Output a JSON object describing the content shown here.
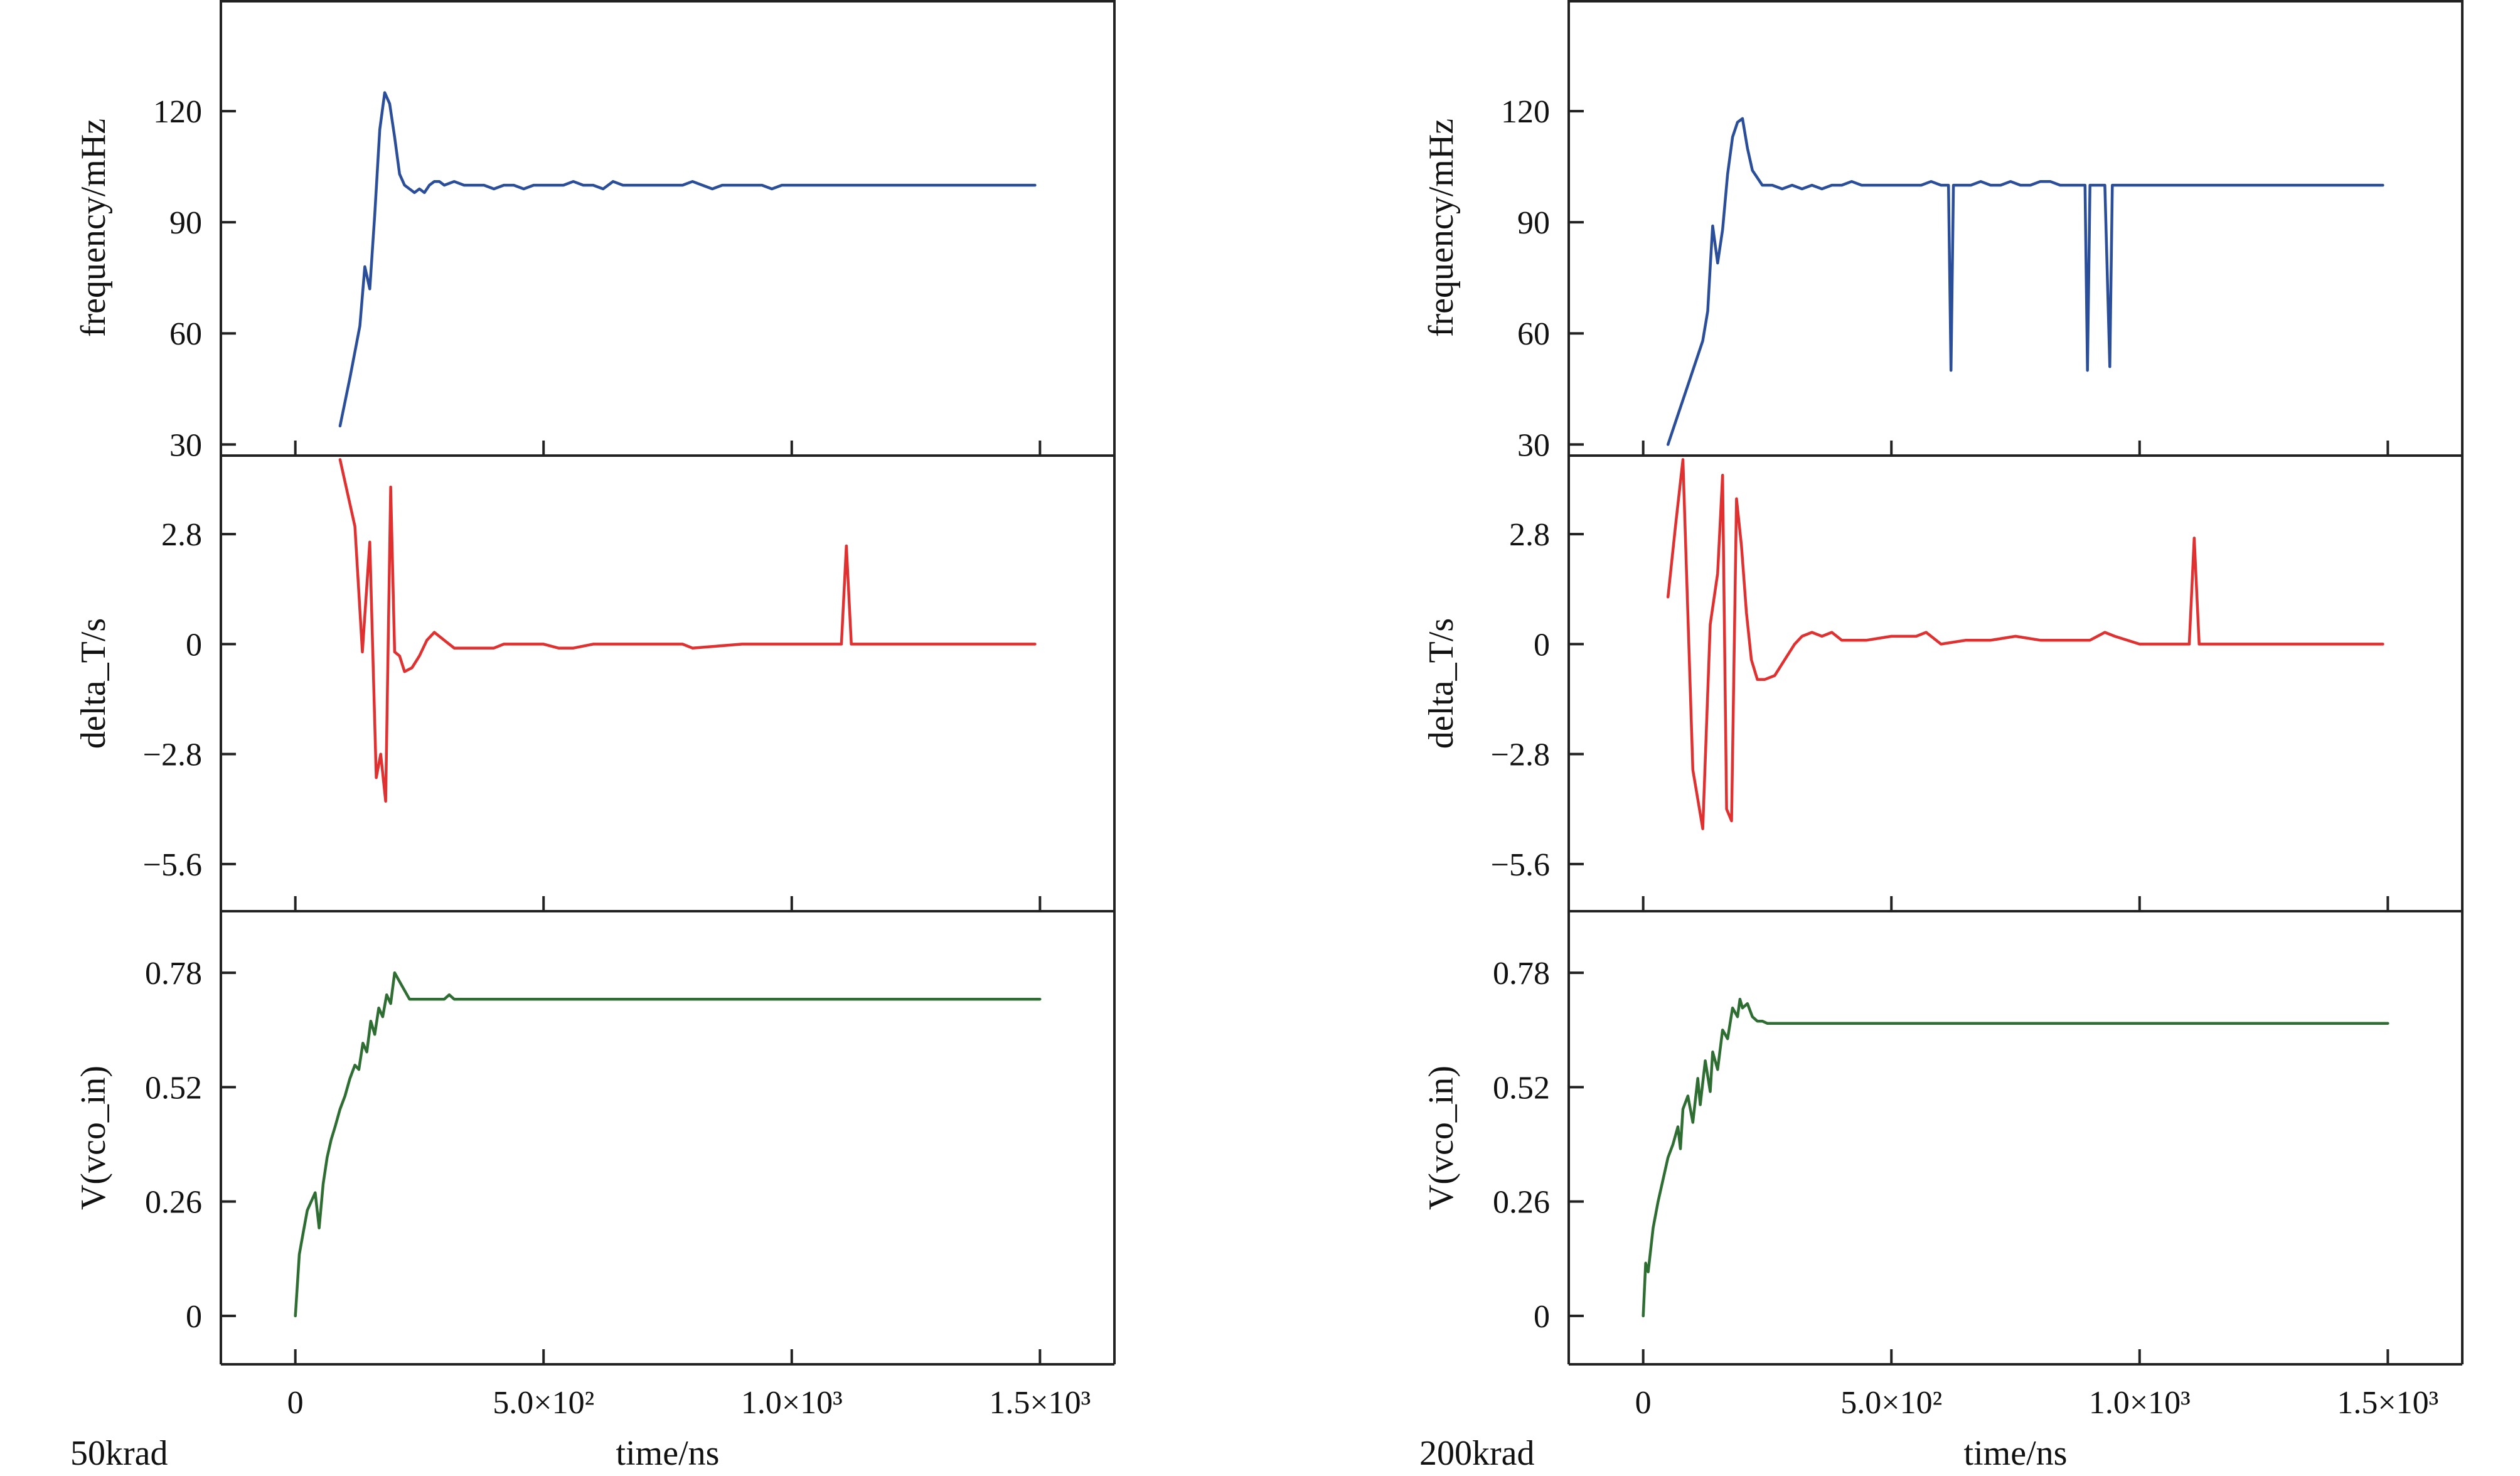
{
  "chart_data": [
    {
      "type": "line",
      "subplot_label": "50krad",
      "xlabel": "time/ns",
      "xlim": [
        -150,
        1650
      ],
      "xticks": [
        0,
        500,
        1000,
        1500
      ],
      "xtick_labels": [
        "0",
        "5.0×10²",
        "1.0×10³",
        "1.5×10³"
      ],
      "panels": [
        {
          "ylabel": "frequency/mHz",
          "ylim": [
            27,
            150
          ],
          "yticks": [
            30,
            60,
            90,
            120
          ],
          "ytick_labels": [
            "30",
            "60",
            "90",
            "120"
          ],
          "color": "#2a4e9a",
          "series": [
            {
              "name": "frequency",
              "x": [
                90,
                110,
                130,
                140,
                150,
                160,
                170,
                180,
                190,
                200,
                210,
                220,
                230,
                240,
                250,
                260,
                270,
                280,
                290,
                300,
                320,
                340,
                360,
                380,
                400,
                420,
                440,
                460,
                480,
                500,
                520,
                540,
                560,
                580,
                600,
                620,
                640,
                660,
                680,
                700,
                720,
                740,
                760,
                780,
                800,
                820,
                840,
                860,
                880,
                900,
                920,
                940,
                960,
                980,
                1000,
                1050,
                1100,
                1200,
                1300,
                1400,
                1490
              ],
              "y": [
                35,
                48,
                62,
                78,
                72,
                92,
                115,
                125,
                122,
                113,
                103,
                100,
                99,
                98,
                99,
                98,
                100,
                101,
                101,
                100,
                101,
                100,
                100,
                100,
                99,
                100,
                100,
                99,
                100,
                100,
                100,
                100,
                101,
                100,
                100,
                99,
                101,
                100,
                100,
                100,
                100,
                100,
                100,
                100,
                101,
                100,
                99,
                100,
                100,
                100,
                100,
                100,
                99,
                100,
                100,
                100,
                100,
                100,
                100,
                100,
                100
              ]
            }
          ]
        },
        {
          "ylabel": "delta_T/s",
          "ylim": [
            -6.8,
            4.8
          ],
          "yticks": [
            -5.6,
            -2.8,
            0,
            2.8
          ],
          "ytick_labels": [
            "−5.6",
            "−2.8",
            "0",
            "2.8"
          ],
          "color": "#e03030",
          "series": [
            {
              "name": "delta_T",
              "x": [
                90,
                120,
                135,
                150,
                163,
                172,
                182,
                192,
                200,
                210,
                220,
                235,
                250,
                265,
                280,
                300,
                320,
                350,
                400,
                420,
                450,
                500,
                530,
                560,
                600,
                630,
                700,
                750,
                780,
                800,
                900,
                950,
                1000,
                1050,
                1100,
                1110,
                1120,
                1300,
                1490
              ],
              "y": [
                4.7,
                3.0,
                -0.2,
                2.6,
                -3.4,
                -2.8,
                -4.0,
                4.0,
                -0.2,
                -0.3,
                -0.7,
                -0.6,
                -0.3,
                0.1,
                0.3,
                0.1,
                -0.1,
                -0.1,
                -0.1,
                0.0,
                0.0,
                0.0,
                -0.1,
                -0.1,
                0.0,
                0.0,
                0.0,
                0.0,
                0.0,
                -0.1,
                0.0,
                0.0,
                0.0,
                0.0,
                0.0,
                2.5,
                0.0,
                0.0,
                0.0
              ]
            }
          ]
        },
        {
          "ylabel": "V(vco_in)",
          "ylim": [
            -0.11,
            0.92
          ],
          "yticks": [
            0,
            0.26,
            0.52,
            0.78
          ],
          "ytick_labels": [
            "0",
            "0.26",
            "0.52",
            "0.78"
          ],
          "color": "#2f6e32",
          "series": [
            {
              "name": "V(vco_in)",
              "x": [
                0,
                8,
                16,
                24,
                32,
                40,
                48,
                56,
                64,
                72,
                80,
                90,
                100,
                110,
                120,
                128,
                136,
                144,
                152,
                160,
                168,
                176,
                184,
                192,
                200,
                210,
                220,
                230,
                240,
                260,
                280,
                300,
                310,
                320,
                400,
                500,
                600,
                700,
                800,
                900,
                1000,
                1100,
                1200,
                1300,
                1400,
                1500
              ],
              "y": [
                0.0,
                0.14,
                0.19,
                0.24,
                0.26,
                0.28,
                0.2,
                0.3,
                0.36,
                0.4,
                0.43,
                0.47,
                0.5,
                0.54,
                0.57,
                0.56,
                0.62,
                0.6,
                0.67,
                0.64,
                0.7,
                0.68,
                0.73,
                0.71,
                0.78,
                0.76,
                0.74,
                0.72,
                0.72,
                0.72,
                0.72,
                0.72,
                0.73,
                0.72,
                0.72,
                0.72,
                0.72,
                0.72,
                0.72,
                0.72,
                0.72,
                0.72,
                0.72,
                0.72,
                0.72,
                0.72
              ]
            }
          ]
        }
      ]
    },
    {
      "type": "line",
      "subplot_label": "200krad",
      "xlabel": "time/ns",
      "xlim": [
        -150,
        1650
      ],
      "xticks": [
        0,
        500,
        1000,
        1500
      ],
      "xtick_labels": [
        "0",
        "5.0×10²",
        "1.0×10³",
        "1.5×10³"
      ],
      "panels": [
        {
          "ylabel": "frequency/mHz",
          "ylim": [
            27,
            150
          ],
          "yticks": [
            30,
            60,
            90,
            120
          ],
          "ytick_labels": [
            "30",
            "60",
            "90",
            "120"
          ],
          "color": "#2a4e9a",
          "series": [
            {
              "name": "frequency",
              "x": [
                50,
                70,
                90,
                110,
                120,
                130,
                135,
                140,
                150,
                160,
                170,
                180,
                190,
                200,
                210,
                220,
                230,
                240,
                260,
                280,
                300,
                320,
                340,
                360,
                380,
                400,
                420,
                440,
                460,
                480,
                500,
                520,
                540,
                560,
                580,
                600,
                610,
                615,
                620,
                625,
                630,
                640,
                660,
                680,
                700,
                720,
                740,
                760,
                780,
                800,
                820,
                840,
                860,
                870,
                880,
                890,
                895,
                900,
                910,
                920,
                930,
                940,
                945,
                950,
                960,
                980,
                1000,
                1050,
                1100,
                1200,
                1300,
                1400,
                1490
              ],
              "y": [
                30,
                38,
                46,
                54,
                58,
                66,
                78,
                89,
                79,
                88,
                103,
                113,
                117,
                118,
                110,
                104,
                102,
                100,
                100,
                99,
                100,
                99,
                100,
                99,
                100,
                100,
                101,
                100,
                100,
                100,
                100,
                100,
                100,
                100,
                101,
                100,
                100,
                100,
                50,
                100,
                100,
                100,
                100,
                101,
                100,
                100,
                101,
                100,
                100,
                101,
                101,
                100,
                100,
                100,
                100,
                100,
                50,
                100,
                100,
                100,
                100,
                51,
                100,
                100,
                100,
                100,
                100,
                100,
                100,
                100,
                100,
                100,
                100
              ]
            }
          ]
        },
        {
          "ylabel": "delta_T/s",
          "ylim": [
            -6.8,
            4.8
          ],
          "yticks": [
            -5.6,
            -2.8,
            0,
            2.8
          ],
          "ytick_labels": [
            "−5.6",
            "−2.8",
            "0",
            "2.8"
          ],
          "color": "#e03030",
          "series": [
            {
              "name": "delta_T",
              "x": [
                50,
                65,
                80,
                100,
                120,
                135,
                150,
                160,
                168,
                178,
                188,
                198,
                208,
                218,
                230,
                245,
                265,
                285,
                305,
                320,
                340,
                360,
                380,
                400,
                420,
                450,
                500,
                550,
                570,
                600,
                650,
                700,
                750,
                800,
                850,
                900,
                930,
                950,
                1000,
                1050,
                1100,
                1110,
                1120,
                1300,
                1490
              ],
              "y": [
                1.2,
                3.0,
                4.7,
                -3.2,
                -4.7,
                0.5,
                1.8,
                4.3,
                -4.2,
                -4.5,
                3.7,
                2.5,
                0.8,
                -0.4,
                -0.9,
                -0.9,
                -0.8,
                -0.4,
                0.0,
                0.2,
                0.3,
                0.2,
                0.3,
                0.1,
                0.1,
                0.1,
                0.2,
                0.2,
                0.3,
                0.0,
                0.1,
                0.1,
                0.2,
                0.1,
                0.1,
                0.1,
                0.3,
                0.2,
                0.0,
                0.0,
                0.0,
                2.7,
                0.0,
                0.0,
                0.0
              ]
            }
          ]
        },
        {
          "ylabel": "V(vco_in)",
          "ylim": [
            -0.11,
            0.92
          ],
          "yticks": [
            0,
            0.26,
            0.52,
            0.78
          ],
          "ytick_labels": [
            "0",
            "0.26",
            "0.52",
            "0.78"
          ],
          "color": "#2f6e32",
          "series": [
            {
              "name": "V(vco_in)",
              "x": [
                0,
                5,
                10,
                20,
                30,
                40,
                50,
                60,
                70,
                75,
                80,
                90,
                100,
                110,
                115,
                125,
                135,
                140,
                150,
                160,
                170,
                180,
                190,
                195,
                200,
                210,
                220,
                230,
                240,
                250,
                270,
                300,
                350,
                400,
                500,
                600,
                700,
                800,
                900,
                1000,
                1100,
                1200,
                1300,
                1400,
                1500
              ],
              "y": [
                0.0,
                0.12,
                0.1,
                0.2,
                0.26,
                0.31,
                0.36,
                0.39,
                0.43,
                0.38,
                0.47,
                0.5,
                0.44,
                0.54,
                0.48,
                0.58,
                0.51,
                0.6,
                0.56,
                0.65,
                0.63,
                0.7,
                0.68,
                0.72,
                0.7,
                0.71,
                0.68,
                0.67,
                0.67,
                0.665,
                0.665,
                0.665,
                0.665,
                0.665,
                0.665,
                0.665,
                0.665,
                0.665,
                0.665,
                0.665,
                0.665,
                0.665,
                0.665,
                0.665,
                0.665
              ]
            }
          ]
        }
      ]
    }
  ]
}
